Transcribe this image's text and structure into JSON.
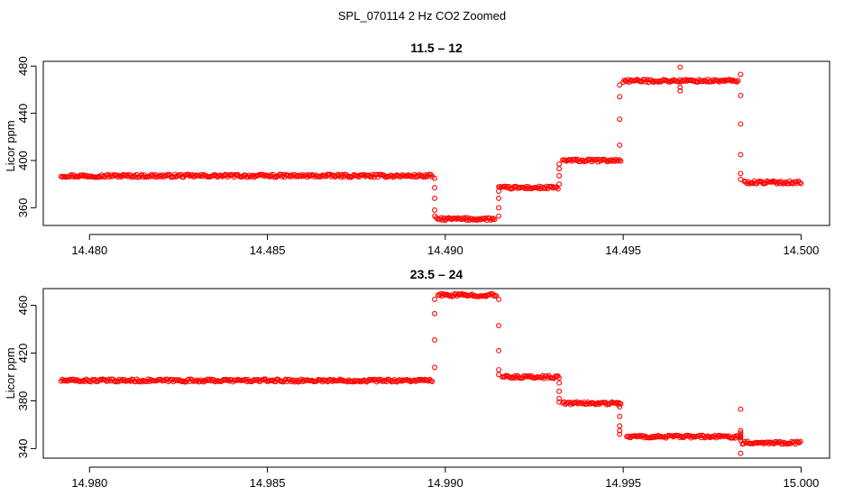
{
  "figure": {
    "title": "SPL_070114  2 Hz CO2 Zoomed"
  },
  "style": {
    "point_color": "#ff0000",
    "axis_color": "#000000",
    "background": "#ffffff"
  },
  "chart_data": [
    {
      "type": "scatter",
      "title": "11.5 – 12",
      "xlabel": "",
      "ylabel": "Licor ppm",
      "xlim": [
        14.4787,
        14.5008
      ],
      "ylim": [
        345,
        484
      ],
      "grid": false,
      "x_ticks": [
        14.48,
        14.485,
        14.49,
        14.495,
        14.5
      ],
      "x_tick_labels": [
        "14.480",
        "14.485",
        "14.490",
        "14.495",
        "14.500"
      ],
      "y_ticks": [
        360,
        400,
        440,
        480
      ],
      "y_tick_labels": [
        "360",
        "400",
        "440",
        "480"
      ],
      "segments": [
        {
          "x_start": 14.4792,
          "x_end": 14.48965,
          "y": 387
        },
        {
          "x_start": 14.48975,
          "x_end": 14.4914,
          "y": 350.5
        },
        {
          "x_start": 14.4915,
          "x_end": 14.4932,
          "y": 377
        },
        {
          "x_start": 14.4933,
          "x_end": 14.49495,
          "y": 400
        },
        {
          "x_start": 14.495,
          "x_end": 14.49825,
          "y": 467.5
        },
        {
          "x_start": 14.4984,
          "x_end": 14.5,
          "y": 381.5
        }
      ],
      "transitions": [
        {
          "x": 14.4897,
          "y": [
            385,
            377,
            368,
            358,
            353
          ]
        },
        {
          "x": 14.4915,
          "y": [
            353,
            360,
            368,
            374
          ]
        },
        {
          "x": 14.4932,
          "y": [
            380,
            387,
            393,
            397
          ]
        },
        {
          "x": 14.4949,
          "y": [
            413,
            435,
            454,
            464
          ]
        },
        {
          "x": 14.4983,
          "y": [
            473,
            455,
            431,
            405,
            389,
            384
          ]
        }
      ],
      "outliers": [
        {
          "x": 14.4966,
          "y": 479
        },
        {
          "x": 14.4966,
          "y": 459
        },
        {
          "x": 14.4966,
          "y": 462
        }
      ]
    },
    {
      "type": "scatter",
      "title": "23.5 – 24",
      "xlabel": "",
      "ylabel": "Licor ppm",
      "xlim": [
        14.9787,
        15.0008
      ],
      "ylim": [
        332,
        474
      ],
      "grid": false,
      "x_ticks": [
        14.98,
        14.985,
        14.99,
        14.995,
        15.0
      ],
      "x_tick_labels": [
        "14.980",
        "14.985",
        "14.990",
        "14.995",
        "15.000"
      ],
      "y_ticks": [
        340,
        380,
        420,
        460
      ],
      "y_tick_labels": [
        "340",
        "380",
        "420",
        "460"
      ],
      "segments": [
        {
          "x_start": 14.9792,
          "x_end": 14.98965,
          "y": 397
        },
        {
          "x_start": 14.9898,
          "x_end": 14.99145,
          "y": 468.5
        },
        {
          "x_start": 14.9916,
          "x_end": 14.9932,
          "y": 400
        },
        {
          "x_start": 14.9933,
          "x_end": 14.99495,
          "y": 378
        },
        {
          "x_start": 14.9951,
          "x_end": 14.9983,
          "y": 350
        },
        {
          "x_start": 14.99835,
          "x_end": 15.0,
          "y": 345
        }
      ],
      "transitions": [
        {
          "x": 14.9897,
          "y": [
            408,
            431,
            453,
            465
          ]
        },
        {
          "x": 14.9915,
          "y": [
            465,
            443,
            422,
            406,
            402
          ]
        },
        {
          "x": 14.9932,
          "y": [
            395,
            388,
            382,
            379
          ]
        },
        {
          "x": 14.9949,
          "y": [
            375,
            367,
            359,
            355,
            352
          ]
        },
        {
          "x": 14.9983,
          "y": [
            353,
            351,
            349,
            347
          ]
        }
      ],
      "outliers": [
        {
          "x": 14.9983,
          "y": 373
        },
        {
          "x": 14.9983,
          "y": 336
        },
        {
          "x": 14.9983,
          "y": 355
        }
      ]
    }
  ]
}
